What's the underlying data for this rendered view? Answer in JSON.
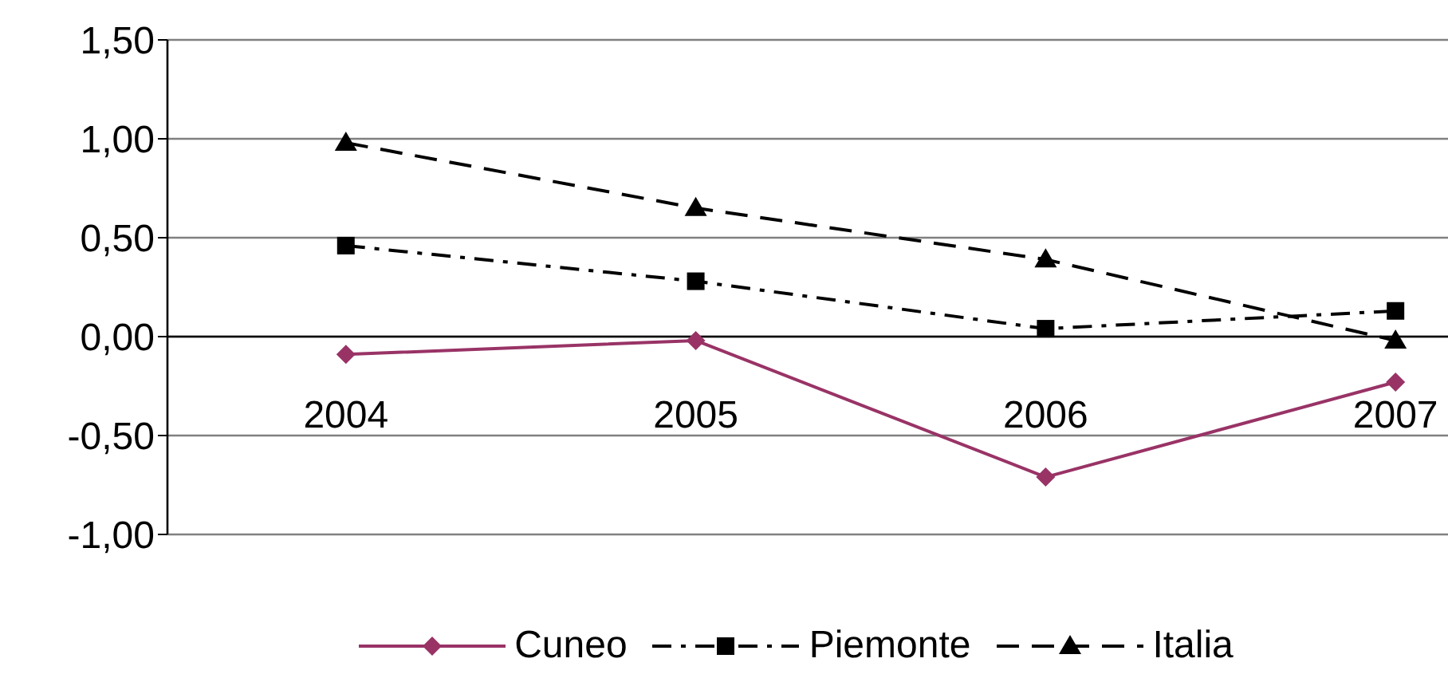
{
  "chart_data": {
    "type": "line",
    "categories": [
      "2004",
      "2005",
      "2006",
      "2007"
    ],
    "series": [
      {
        "name": "Cuneo",
        "color": "#993366",
        "values": [
          -0.09,
          -0.02,
          -0.71,
          -0.23
        ],
        "marker": "diamond",
        "line_style": "solid"
      },
      {
        "name": "Piemonte",
        "color": "#000000",
        "values": [
          0.46,
          0.28,
          0.04,
          0.13
        ],
        "marker": "square",
        "line_style": "dashdot"
      },
      {
        "name": "Italia",
        "color": "#000000",
        "values": [
          0.98,
          0.65,
          0.39,
          -0.02
        ],
        "marker": "triangle",
        "line_style": "dashed"
      }
    ],
    "ylim": [
      -1,
      1.5
    ],
    "yticks": [
      {
        "value": -1,
        "label": "-1,00"
      },
      {
        "value": -0.5,
        "label": "-0,50"
      },
      {
        "value": 0,
        "label": "0,00"
      },
      {
        "value": 0.5,
        "label": "0,50"
      },
      {
        "value": 1,
        "label": "1,00"
      },
      {
        "value": 1.5,
        "label": "1,50"
      }
    ],
    "grid": "y",
    "legend": "bottom"
  }
}
